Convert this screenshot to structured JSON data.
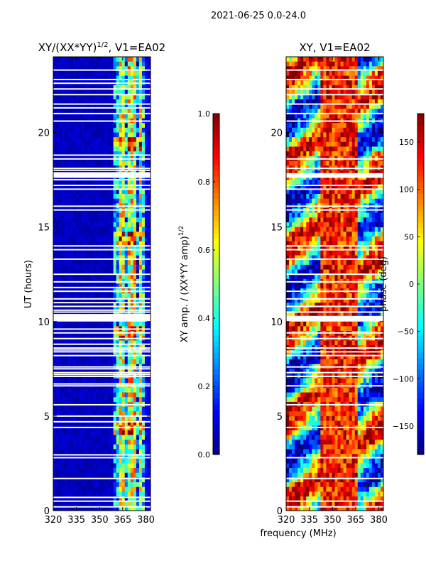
{
  "suptitle": "2021-06-25 0.0-24.0",
  "shared_xlabel": "frequency (MHz)",
  "colors": {
    "background": "#ffffff",
    "frame": "#000000"
  },
  "chart_data": [
    {
      "type": "heatmap",
      "title_main": "XY/(XX*YY)",
      "title_sup": "1/2",
      "title_tail": ", V1=EA02",
      "ylabel": "UT (hours)",
      "xlim": [
        320,
        383
      ],
      "ylim": [
        0,
        24
      ],
      "xticks": [
        320,
        335,
        350,
        365,
        380
      ],
      "yticks": [
        0,
        5,
        10,
        15,
        20
      ],
      "colorbar": {
        "label_main": "XY amp. / (XX*YY amp)",
        "label_sup": "1/2",
        "range": [
          0.0,
          1.0
        ],
        "ticks": [
          0.0,
          0.2,
          0.4,
          0.6,
          0.8,
          1.0
        ],
        "tick_labels": [
          "0.0",
          "0.2",
          "0.4",
          "0.6",
          "0.8",
          "1.0"
        ],
        "colormap": "jet"
      },
      "bands": [
        {
          "from": 320,
          "to": 359,
          "level": 0.06
        },
        {
          "from": 359,
          "to": 362,
          "level": 0.3
        },
        {
          "from": 362,
          "to": 366,
          "level": 0.55
        },
        {
          "from": 366,
          "to": 369,
          "level": 0.3
        },
        {
          "from": 369,
          "to": 373,
          "level": 0.6
        },
        {
          "from": 373,
          "to": 375,
          "level": 0.25
        },
        {
          "from": 375,
          "to": 378,
          "level": 0.55
        },
        {
          "from": 378,
          "to": 380,
          "level": 0.35
        },
        {
          "from": 380,
          "to": 383,
          "level": 0.1
        }
      ],
      "gaps_hours": [
        0.2,
        0.5,
        0.7,
        1.7,
        2.8,
        2.95,
        4.4,
        4.7,
        5.0,
        5.6,
        6.6,
        6.7,
        7.1,
        7.2,
        7.3,
        7.5,
        7.6,
        8.2,
        8.4,
        8.5,
        8.6,
        8.8,
        9.1,
        9.4,
        9.6,
        10.3,
        10.5,
        10.6,
        10.8,
        11.0,
        11.2,
        11.6,
        11.8,
        12.1,
        12.5,
        13.3,
        13.8,
        14.0,
        15.9,
        16.1,
        17.0,
        17.2,
        17.5,
        17.8,
        18.0,
        18.1,
        18.6,
        18.8,
        20.6,
        21.0,
        21.3,
        21.5,
        22.0,
        22.3,
        22.6,
        22.8,
        23.3
      ],
      "gap_blocks": [
        {
          "from": 10.0,
          "to": 10.4
        },
        {
          "from": 17.6,
          "to": 17.9
        }
      ]
    },
    {
      "type": "heatmap",
      "title_main": "XY, V1=EA02",
      "ylabel": "",
      "xlim": [
        320,
        383
      ],
      "ylim": [
        0,
        24
      ],
      "xticks": [
        320,
        335,
        350,
        365,
        380
      ],
      "yticks": [
        0,
        5,
        10,
        15,
        20
      ],
      "colorbar": {
        "label_main": "phase (deg)",
        "range": [
          -180,
          180
        ],
        "ticks": [
          -150,
          -100,
          -50,
          0,
          50,
          100,
          150
        ],
        "tick_labels": [
          "−150",
          "−100",
          "−50",
          "0",
          "50",
          "100",
          "150"
        ],
        "colormap": "jet"
      },
      "gaps_hours": [
        0.2,
        0.5,
        1.7,
        2.8,
        4.4,
        5.6,
        6.6,
        7.1,
        7.3,
        7.6,
        8.2,
        8.4,
        8.6,
        9.1,
        9.4,
        10.5,
        10.8,
        11.2,
        11.6,
        12.1,
        12.5,
        13.3,
        13.8,
        14.0,
        15.9,
        16.1,
        17.0,
        17.2,
        17.8,
        18.1,
        18.6,
        20.6,
        21.0,
        21.5,
        22.0,
        22.3,
        22.8,
        23.3
      ],
      "gap_blocks": [
        {
          "from": 10.0,
          "to": 10.3
        },
        {
          "from": 17.6,
          "to": 17.85
        }
      ]
    }
  ]
}
